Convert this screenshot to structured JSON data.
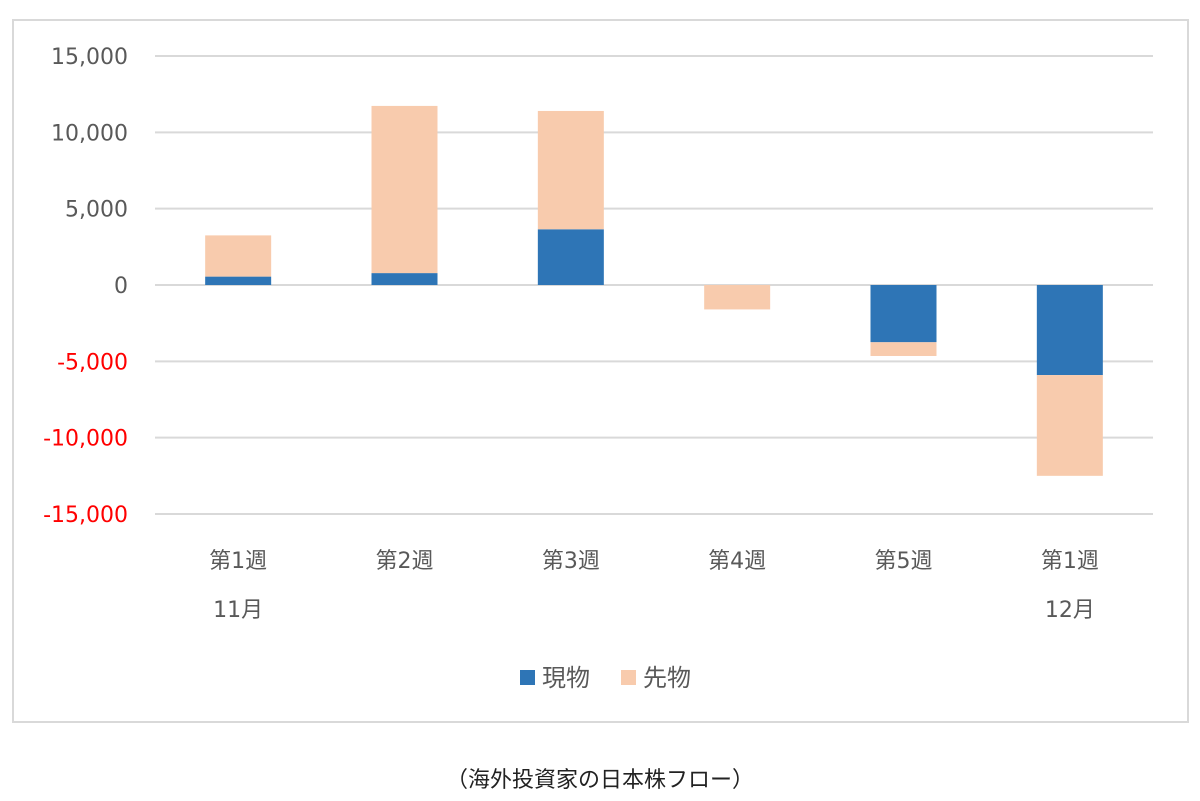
{
  "chart_data": {
    "type": "bar",
    "stacked": true,
    "categories": [
      "第1週",
      "第2週",
      "第3週",
      "第4週",
      "第5週",
      "第1週"
    ],
    "month_labels": [
      "11月",
      "",
      "",
      "",
      "",
      "12月"
    ],
    "series": [
      {
        "name": "現物",
        "color": "#2e75b6",
        "values": [
          550,
          780,
          3650,
          0,
          -3750,
          -5900
        ]
      },
      {
        "name": "先物",
        "color": "#f8cbad",
        "values": [
          2700,
          10950,
          7750,
          -1600,
          -900,
          -6600
        ]
      }
    ],
    "ylim": [
      -15000,
      15000
    ],
    "yticks": [
      15000,
      10000,
      5000,
      0,
      -5000,
      -10000,
      -15000
    ],
    "ytick_labels": [
      "15,000",
      "10,000",
      "5,000",
      "0",
      "-5,000",
      "-10,000",
      "-15,000"
    ],
    "negative_tick_color": "#ff0000",
    "grid": true,
    "legend_position": "bottom",
    "caption": "（海外投資家の日本株フロー）"
  }
}
